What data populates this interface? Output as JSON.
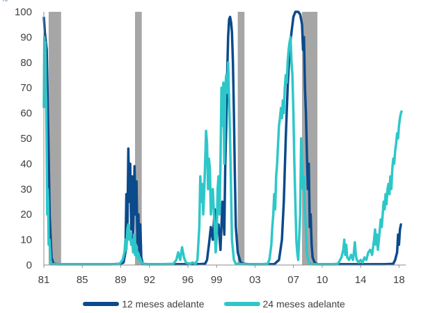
{
  "chart_data": {
    "type": "line",
    "title": "",
    "unit_label": "%",
    "xlabel": "",
    "ylabel": "",
    "xlim": [
      1981,
      2018.7
    ],
    "ylim": [
      0,
      100
    ],
    "x_ticks": [
      {
        "x": 1981,
        "label": "81"
      },
      {
        "x": 1985,
        "label": "85"
      },
      {
        "x": 1989,
        "label": "89"
      },
      {
        "x": 1992,
        "label": "92"
      },
      {
        "x": 1996,
        "label": "96"
      },
      {
        "x": 1999,
        "label": "99"
      },
      {
        "x": 2003,
        "label": "03"
      },
      {
        "x": 2007,
        "label": "07"
      },
      {
        "x": 2010,
        "label": "10"
      },
      {
        "x": 2014,
        "label": "14"
      },
      {
        "x": 2018,
        "label": "18"
      }
    ],
    "y_ticks": [
      0,
      10,
      20,
      30,
      40,
      50,
      60,
      70,
      80,
      90,
      100
    ],
    "recessions": [
      [
        1981.5,
        1982.8
      ],
      [
        1990.5,
        1991.2
      ],
      [
        2001.2,
        2001.9
      ],
      [
        2007.9,
        2009.5
      ]
    ],
    "recession_color": "#a6a6a6",
    "grid": false,
    "legend_position": "bottom",
    "series": [
      {
        "name": "12 meses adelante",
        "color": "#0b4a8b",
        "points": [
          [
            1981.0,
            98
          ],
          [
            1981.1,
            92
          ],
          [
            1981.3,
            85
          ],
          [
            1981.45,
            55
          ],
          [
            1981.6,
            20
          ],
          [
            1981.8,
            3
          ],
          [
            1982.0,
            0.5
          ],
          [
            1982.5,
            0.3
          ],
          [
            1984.0,
            0.3
          ],
          [
            1986.0,
            0.3
          ],
          [
            1988.0,
            0.3
          ],
          [
            1989.0,
            0.5
          ],
          [
            1989.3,
            1
          ],
          [
            1989.5,
            5
          ],
          [
            1989.6,
            28
          ],
          [
            1989.7,
            12
          ],
          [
            1989.8,
            46
          ],
          [
            1989.9,
            25
          ],
          [
            1990.0,
            40
          ],
          [
            1990.1,
            14
          ],
          [
            1990.2,
            35
          ],
          [
            1990.3,
            10
          ],
          [
            1990.45,
            39
          ],
          [
            1990.55,
            20
          ],
          [
            1990.65,
            33
          ],
          [
            1990.75,
            8
          ],
          [
            1990.85,
            20
          ],
          [
            1990.95,
            5
          ],
          [
            1991.05,
            16
          ],
          [
            1991.15,
            3
          ],
          [
            1991.3,
            0.5
          ],
          [
            1991.8,
            0.3
          ],
          [
            1993.0,
            0.3
          ],
          [
            1995.0,
            0.3
          ],
          [
            1997.0,
            0.3
          ],
          [
            1997.8,
            0.5
          ],
          [
            1998.0,
            2
          ],
          [
            1998.2,
            8
          ],
          [
            1998.4,
            15
          ],
          [
            1998.6,
            10
          ],
          [
            1998.8,
            22
          ],
          [
            1999.0,
            12
          ],
          [
            1999.2,
            16
          ],
          [
            1999.4,
            6
          ],
          [
            1999.6,
            25
          ],
          [
            1999.8,
            12
          ],
          [
            1999.9,
            40
          ],
          [
            2000.0,
            55
          ],
          [
            2000.1,
            75
          ],
          [
            2000.2,
            90
          ],
          [
            2000.3,
            97
          ],
          [
            2000.4,
            98
          ],
          [
            2000.5,
            96
          ],
          [
            2000.6,
            92
          ],
          [
            2000.7,
            80
          ],
          [
            2000.8,
            60
          ],
          [
            2000.9,
            35
          ],
          [
            2001.0,
            15
          ],
          [
            2001.2,
            5
          ],
          [
            2001.5,
            1
          ],
          [
            2001.8,
            0.5
          ],
          [
            2002.5,
            0.3
          ],
          [
            2004.0,
            0.3
          ],
          [
            2005.0,
            0.3
          ],
          [
            2005.5,
            2
          ],
          [
            2005.8,
            10
          ],
          [
            2006.0,
            25
          ],
          [
            2006.2,
            50
          ],
          [
            2006.4,
            70
          ],
          [
            2006.6,
            85
          ],
          [
            2006.8,
            92
          ],
          [
            2007.0,
            98
          ],
          [
            2007.2,
            100
          ],
          [
            2007.5,
            100
          ],
          [
            2007.7,
            99
          ],
          [
            2007.9,
            95
          ],
          [
            2008.0,
            85
          ],
          [
            2008.1,
            90
          ],
          [
            2008.2,
            70
          ],
          [
            2008.3,
            60
          ],
          [
            2008.4,
            45
          ],
          [
            2008.5,
            30
          ],
          [
            2008.6,
            40
          ],
          [
            2008.7,
            15
          ],
          [
            2008.8,
            20
          ],
          [
            2008.9,
            8
          ],
          [
            2009.0,
            3
          ],
          [
            2009.2,
            1
          ],
          [
            2009.5,
            0.3
          ],
          [
            2011.0,
            0.3
          ],
          [
            2013.0,
            0.3
          ],
          [
            2015.0,
            0.3
          ],
          [
            2016.5,
            0.3
          ],
          [
            2017.4,
            0.5
          ],
          [
            2017.6,
            2
          ],
          [
            2017.8,
            5
          ],
          [
            2017.9,
            12
          ],
          [
            2018.0,
            8
          ],
          [
            2018.1,
            14
          ],
          [
            2018.2,
            16
          ],
          [
            2018.3,
            16
          ]
        ]
      },
      {
        "name": "24 meses adelante",
        "color": "#2ec7c9",
        "points": [
          [
            1981.0,
            62
          ],
          [
            1981.05,
            90
          ],
          [
            1981.1,
            82
          ],
          [
            1981.15,
            88
          ],
          [
            1981.2,
            70
          ],
          [
            1981.25,
            65
          ],
          [
            1981.3,
            45
          ],
          [
            1981.35,
            20
          ],
          [
            1981.4,
            30
          ],
          [
            1981.45,
            25
          ],
          [
            1981.5,
            8
          ],
          [
            1981.6,
            10
          ],
          [
            1981.7,
            2
          ],
          [
            1981.8,
            0.3
          ],
          [
            1983.0,
            0.3
          ],
          [
            1985.0,
            0.3
          ],
          [
            1987.0,
            0.3
          ],
          [
            1988.5,
            0.3
          ],
          [
            1988.9,
            0.5
          ],
          [
            1989.2,
            2
          ],
          [
            1989.4,
            5
          ],
          [
            1989.5,
            10
          ],
          [
            1989.6,
            6
          ],
          [
            1989.7,
            14
          ],
          [
            1989.8,
            16
          ],
          [
            1989.9,
            10
          ],
          [
            1990.0,
            13
          ],
          [
            1990.1,
            8
          ],
          [
            1990.2,
            10
          ],
          [
            1990.3,
            5
          ],
          [
            1990.4,
            12
          ],
          [
            1990.5,
            4
          ],
          [
            1990.6,
            8
          ],
          [
            1990.7,
            3
          ],
          [
            1990.8,
            5
          ],
          [
            1990.9,
            2
          ],
          [
            1991.0,
            3
          ],
          [
            1991.2,
            1
          ],
          [
            1991.5,
            0.3
          ],
          [
            1993.0,
            0.3
          ],
          [
            1994.5,
            0.5
          ],
          [
            1994.8,
            2
          ],
          [
            1995.0,
            5
          ],
          [
            1995.2,
            2
          ],
          [
            1995.4,
            7
          ],
          [
            1995.6,
            3
          ],
          [
            1995.8,
            1
          ],
          [
            1996.2,
            0.5
          ],
          [
            1996.5,
            1
          ],
          [
            1996.8,
            0.5
          ],
          [
            1997.0,
            2
          ],
          [
            1997.2,
            15
          ],
          [
            1997.3,
            35
          ],
          [
            1997.4,
            25
          ],
          [
            1997.5,
            32
          ],
          [
            1997.6,
            20
          ],
          [
            1997.7,
            28
          ],
          [
            1997.8,
            40
          ],
          [
            1997.9,
            53
          ],
          [
            1998.0,
            48
          ],
          [
            1998.1,
            30
          ],
          [
            1998.2,
            42
          ],
          [
            1998.3,
            38
          ],
          [
            1998.4,
            20
          ],
          [
            1998.5,
            28
          ],
          [
            1998.6,
            30
          ],
          [
            1998.7,
            22
          ],
          [
            1998.8,
            15
          ],
          [
            1998.9,
            5
          ],
          [
            1999.0,
            10
          ],
          [
            1999.1,
            30
          ],
          [
            1999.2,
            35
          ],
          [
            1999.3,
            20
          ],
          [
            1999.4,
            40
          ],
          [
            1999.5,
            70
          ],
          [
            1999.6,
            55
          ],
          [
            1999.7,
            72
          ],
          [
            1999.8,
            40
          ],
          [
            1999.9,
            70
          ],
          [
            2000.0,
            75
          ],
          [
            2000.1,
            68
          ],
          [
            2000.2,
            80
          ],
          [
            2000.3,
            65
          ],
          [
            2000.4,
            50
          ],
          [
            2000.5,
            30
          ],
          [
            2000.6,
            10
          ],
          [
            2000.8,
            2
          ],
          [
            2001.0,
            0.5
          ],
          [
            2002.0,
            0.3
          ],
          [
            2003.5,
            0.3
          ],
          [
            2004.3,
            0.5
          ],
          [
            2004.5,
            2
          ],
          [
            2004.7,
            8
          ],
          [
            2004.8,
            15
          ],
          [
            2004.9,
            20
          ],
          [
            2005.0,
            28
          ],
          [
            2005.1,
            22
          ],
          [
            2005.2,
            35
          ],
          [
            2005.3,
            40
          ],
          [
            2005.4,
            48
          ],
          [
            2005.5,
            55
          ],
          [
            2005.6,
            58
          ],
          [
            2005.7,
            62
          ],
          [
            2005.8,
            58
          ],
          [
            2005.9,
            65
          ],
          [
            2006.0,
            60
          ],
          [
            2006.1,
            70
          ],
          [
            2006.2,
            75
          ],
          [
            2006.3,
            72
          ],
          [
            2006.4,
            80
          ],
          [
            2006.5,
            85
          ],
          [
            2006.6,
            88
          ],
          [
            2006.7,
            90
          ],
          [
            2006.8,
            80
          ],
          [
            2006.9,
            75
          ],
          [
            2007.0,
            60
          ],
          [
            2007.1,
            40
          ],
          [
            2007.2,
            25
          ],
          [
            2007.3,
            10
          ],
          [
            2007.4,
            5
          ],
          [
            2007.5,
            2
          ],
          [
            2007.7,
            20
          ],
          [
            2007.8,
            50
          ],
          [
            2007.9,
            40
          ],
          [
            2008.0,
            30
          ],
          [
            2008.1,
            35
          ],
          [
            2008.2,
            20
          ],
          [
            2008.3,
            15
          ],
          [
            2008.4,
            5
          ],
          [
            2008.6,
            1
          ],
          [
            2009.0,
            0.3
          ],
          [
            2011.0,
            0.3
          ],
          [
            2011.6,
            0.5
          ],
          [
            2011.8,
            1.5
          ],
          [
            2012.0,
            3
          ],
          [
            2012.2,
            6
          ],
          [
            2012.3,
            10
          ],
          [
            2012.4,
            4
          ],
          [
            2012.5,
            8
          ],
          [
            2012.6,
            3
          ],
          [
            2012.8,
            2
          ],
          [
            2013.0,
            4
          ],
          [
            2013.2,
            2
          ],
          [
            2013.3,
            5
          ],
          [
            2013.4,
            9
          ],
          [
            2013.5,
            4
          ],
          [
            2013.6,
            2
          ],
          [
            2013.8,
            1
          ],
          [
            2014.0,
            2
          ],
          [
            2014.2,
            1
          ],
          [
            2014.4,
            3
          ],
          [
            2014.6,
            2
          ],
          [
            2014.8,
            5
          ],
          [
            2015.0,
            6
          ],
          [
            2015.2,
            4
          ],
          [
            2015.4,
            10
          ],
          [
            2015.5,
            14
          ],
          [
            2015.6,
            8
          ],
          [
            2015.7,
            12
          ],
          [
            2015.8,
            6
          ],
          [
            2015.9,
            10
          ],
          [
            2016.0,
            14
          ],
          [
            2016.1,
            18
          ],
          [
            2016.2,
            15
          ],
          [
            2016.3,
            20
          ],
          [
            2016.4,
            25
          ],
          [
            2016.5,
            22
          ],
          [
            2016.6,
            28
          ],
          [
            2016.7,
            24
          ],
          [
            2016.8,
            30
          ],
          [
            2016.9,
            32
          ],
          [
            2017.0,
            28
          ],
          [
            2017.1,
            35
          ],
          [
            2017.2,
            30
          ],
          [
            2017.3,
            38
          ],
          [
            2017.4,
            42
          ],
          [
            2017.5,
            40
          ],
          [
            2017.6,
            45
          ],
          [
            2017.7,
            48
          ],
          [
            2017.8,
            52
          ],
          [
            2017.9,
            50
          ],
          [
            2018.0,
            55
          ],
          [
            2018.1,
            58
          ],
          [
            2018.2,
            60
          ],
          [
            2018.3,
            61
          ]
        ]
      }
    ]
  }
}
